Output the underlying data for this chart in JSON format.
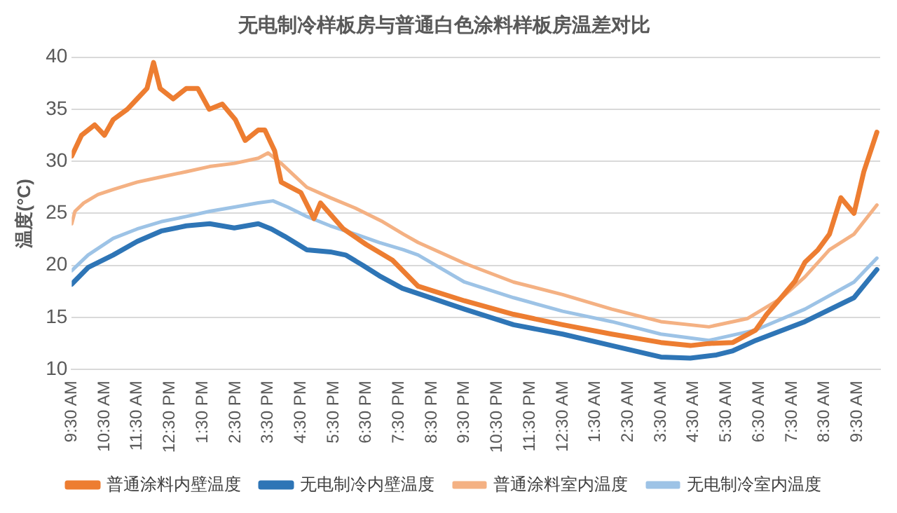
{
  "chart_data": {
    "type": "line",
    "title": "无电制冷样板房与普通白色涂料样板房温差对比",
    "ylabel": "温度(°C)",
    "xlim": [
      "--01-01T09:30",
      "--01-02T10:12"
    ],
    "ylim": [
      10,
      40
    ],
    "xticks": [
      {
        "value": "--01-01T09:30",
        "label": "9:30 AM"
      },
      {
        "value": "--01-01T10:30",
        "label": "10:30 AM"
      },
      {
        "value": "--01-01T11:30",
        "label": "11:30 AM"
      },
      {
        "value": "--01-01T12:30",
        "label": "12:30 PM"
      },
      {
        "value": "--01-01T13:30",
        "label": "1:30 PM"
      },
      {
        "value": "--01-01T14:30",
        "label": "2:30 PM"
      },
      {
        "value": "--01-01T15:30",
        "label": "3:30 PM"
      },
      {
        "value": "--01-01T16:30",
        "label": "4:30 PM"
      },
      {
        "value": "--01-01T17:30",
        "label": "5:30 PM"
      },
      {
        "value": "--01-01T18:30",
        "label": "6:30 PM"
      },
      {
        "value": "--01-01T19:30",
        "label": "7:30 PM"
      },
      {
        "value": "--01-01T20:30",
        "label": "8:30 PM"
      },
      {
        "value": "--01-01T21:30",
        "label": "9:30 PM"
      },
      {
        "value": "--01-01T22:30",
        "label": "10:30 PM"
      },
      {
        "value": "--01-01T23:30",
        "label": "11:30 PM"
      },
      {
        "value": "--01-02T00:30",
        "label": "12:30 AM"
      },
      {
        "value": "--01-02T01:30",
        "label": "1:30 AM"
      },
      {
        "value": "--01-02T02:30",
        "label": "2:30 AM"
      },
      {
        "value": "--01-02T03:30",
        "label": "3:30 AM"
      },
      {
        "value": "--01-02T04:30",
        "label": "4:30 AM"
      },
      {
        "value": "--01-02T05:30",
        "label": "5:30 AM"
      },
      {
        "value": "--01-02T06:30",
        "label": "6:30 AM"
      },
      {
        "value": "--01-02T07:30",
        "label": "7:30 AM"
      },
      {
        "value": "--01-02T08:30",
        "label": "8:30 AM"
      },
      {
        "value": "--01-02T09:30",
        "label": "9:30 AM"
      }
    ],
    "yticks": [
      10,
      15,
      20,
      25,
      30,
      35,
      40
    ],
    "grid": "y",
    "legend": "bottom",
    "marker": "none",
    "line_style": "solid",
    "series": [
      {
        "name": "普通涂料内壁温度",
        "color": "#ed7d31",
        "x": [
          "--01-01T09:30",
          "--01-01T09:48",
          "--01-01T10:12",
          "--01-01T10:30",
          "--01-01T10:46",
          "--01-01T11:12",
          "--01-01T11:30",
          "--01-01T11:48",
          "--01-01T12:00",
          "--01-01T12:12",
          "--01-01T12:36",
          "--01-01T13:00",
          "--01-01T13:21",
          "--01-01T13:42",
          "--01-01T14:06",
          "--01-01T14:30",
          "--01-01T14:48",
          "--01-01T15:12",
          "--01-01T15:24",
          "--01-01T15:42",
          "--01-01T15:54",
          "--01-01T16:12",
          "--01-01T16:30",
          "--01-01T16:54",
          "--01-01T17:06",
          "--01-01T17:48",
          "--01-01T18:30",
          "--01-01T19:18",
          "--01-01T20:05",
          "--01-01T21:30",
          "--01-01T23:00",
          "--01-02T00:30",
          "--01-02T02:00",
          "--01-02T03:30",
          "--01-02T04:24",
          "--01-02T04:58",
          "--01-02T05:42",
          "--01-02T06:24",
          "--01-02T06:44",
          "--01-02T07:12",
          "--01-02T07:36",
          "--01-02T07:54",
          "--01-02T08:18",
          "--01-02T08:39",
          "--01-02T09:00",
          "--01-02T09:24",
          "--01-02T09:42",
          "--01-02T10:06"
        ],
        "values": [
          30.5,
          32.5,
          33.5,
          32.5,
          34,
          35,
          36,
          37,
          39.5,
          37,
          36,
          37,
          37,
          35,
          35.5,
          34,
          32,
          33,
          33,
          31,
          28,
          27.5,
          27,
          24.5,
          26,
          23.5,
          22,
          20.5,
          18,
          16.6,
          15.3,
          14.3,
          13.4,
          12.6,
          12.3,
          12.5,
          12.6,
          13.8,
          15.3,
          17,
          18.5,
          20.3,
          21.5,
          23,
          26.5,
          25,
          29,
          32.8
        ]
      },
      {
        "name": "无电制冷内壁温度",
        "color": "#2e75b6",
        "x": [
          "--01-01T09:30",
          "--01-01T10:00",
          "--01-01T10:46",
          "--01-01T11:30",
          "--01-01T12:14",
          "--01-01T13:00",
          "--01-01T13:43",
          "--01-01T14:28",
          "--01-01T15:12",
          "--01-01T15:36",
          "--01-01T16:00",
          "--01-01T16:41",
          "--01-01T17:24",
          "--01-01T17:52",
          "--01-01T18:24",
          "--01-01T18:54",
          "--01-01T19:36",
          "--01-01T20:05",
          "--01-01T21:30",
          "--01-01T23:00",
          "--01-02T00:30",
          "--01-02T02:00",
          "--01-02T03:30",
          "--01-02T04:24",
          "--01-02T05:12",
          "--01-02T05:42",
          "--01-02T06:24",
          "--01-02T07:54",
          "--01-02T09:24",
          "--01-02T10:06"
        ],
        "values": [
          18.2,
          19.8,
          21,
          22.3,
          23.3,
          23.8,
          24,
          23.6,
          24,
          23.5,
          22.8,
          21.5,
          21.3,
          21,
          20,
          19,
          17.8,
          17.3,
          15.8,
          14.3,
          13.4,
          12.3,
          11.2,
          11.1,
          11.4,
          11.8,
          12.8,
          14.6,
          16.9,
          19.6
        ]
      },
      {
        "name": "普通涂料室内温度",
        "color": "#f4b183",
        "x": [
          "--01-01T09:30",
          "--01-01T09:36",
          "--01-01T09:52",
          "--01-01T10:18",
          "--01-01T10:46",
          "--01-01T11:30",
          "--01-01T12:14",
          "--01-01T13:00",
          "--01-01T13:43",
          "--01-01T14:28",
          "--01-01T15:12",
          "--01-01T15:30",
          "--01-01T15:54",
          "--01-01T16:41",
          "--01-01T17:24",
          "--01-01T18:10",
          "--01-01T19:00",
          "--01-01T19:38",
          "--01-01T20:05",
          "--01-01T21:30",
          "--01-01T23:00",
          "--01-02T00:30",
          "--01-02T02:00",
          "--01-02T03:30",
          "--01-02T04:58",
          "--01-02T06:09",
          "--01-02T07:12",
          "--01-02T07:54",
          "--01-02T08:39",
          "--01-02T09:24",
          "--01-02T10:06"
        ],
        "values": [
          24,
          25.2,
          26,
          26.8,
          27.3,
          28,
          28.5,
          29,
          29.5,
          29.8,
          30.3,
          30.8,
          29.8,
          27.5,
          26.5,
          25.5,
          24.2,
          23,
          22.2,
          20.2,
          18.4,
          17.2,
          15.8,
          14.6,
          14.1,
          14.9,
          16.9,
          18.9,
          21.5,
          23,
          25.8
        ]
      },
      {
        "name": "无电制冷室内温度",
        "color": "#9dc3e6",
        "x": [
          "--01-01T09:30",
          "--01-01T10:00",
          "--01-01T10:46",
          "--01-01T11:30",
          "--01-01T12:14",
          "--01-01T13:00",
          "--01-01T13:43",
          "--01-01T14:28",
          "--01-01T15:12",
          "--01-01T15:39",
          "--01-01T16:06",
          "--01-01T16:41",
          "--01-01T17:24",
          "--01-01T18:10",
          "--01-01T18:54",
          "--01-01T19:38",
          "--01-01T20:05",
          "--01-01T21:30",
          "--01-01T23:00",
          "--01-02T00:30",
          "--01-02T02:00",
          "--01-02T03:30",
          "--01-02T04:58",
          "--01-02T06:24",
          "--01-02T07:54",
          "--01-02T09:24",
          "--01-02T10:06"
        ],
        "values": [
          19.5,
          21,
          22.6,
          23.5,
          24.2,
          24.7,
          25.2,
          25.6,
          26,
          26.2,
          25.6,
          24.7,
          23.8,
          23,
          22.2,
          21.5,
          21,
          18.4,
          16.9,
          15.6,
          14.6,
          13.4,
          12.8,
          13.8,
          15.8,
          18.4,
          20.7
        ]
      }
    ]
  }
}
